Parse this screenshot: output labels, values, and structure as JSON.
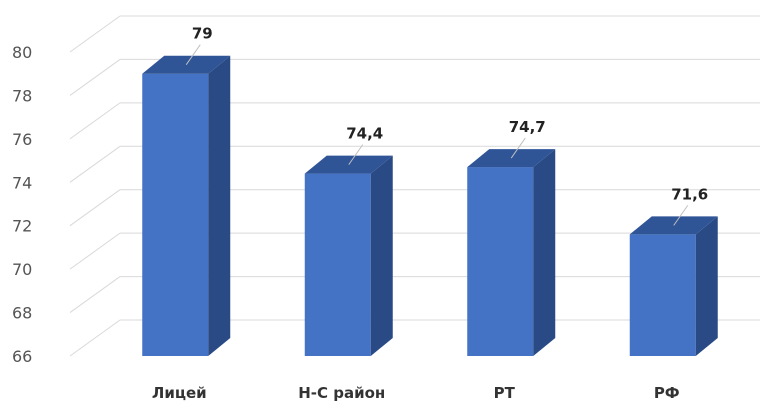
{
  "chart_data": {
    "type": "bar",
    "style": "3d-column",
    "categories": [
      "Лицей",
      "Н-С район",
      "РТ",
      "РФ"
    ],
    "values": [
      79,
      74.4,
      74.7,
      71.6
    ],
    "value_labels": [
      "79",
      "74,4",
      "74,7",
      "71,6"
    ],
    "ylim": [
      66,
      80
    ],
    "yticks": [
      "66",
      "68",
      "70",
      "72",
      "74",
      "76",
      "78",
      "80"
    ],
    "grid": true,
    "legend": "none",
    "colors": {
      "front": "#4472c4",
      "side": "#2a4a86",
      "top": "#2f5597",
      "grid": "#d9d9d9"
    }
  }
}
